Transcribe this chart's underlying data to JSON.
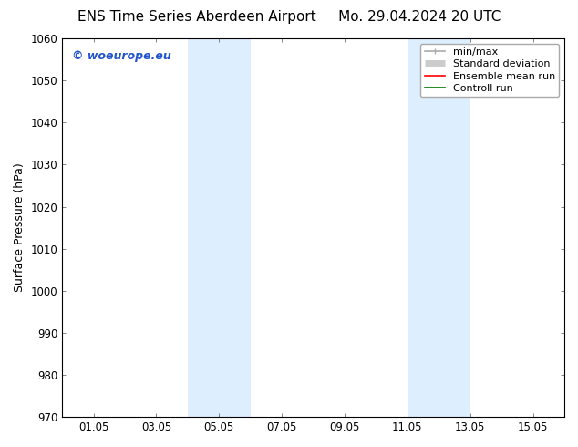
{
  "title_left": "ENS Time Series Aberdeen Airport",
  "title_right": "Mo. 29.04.2024 20 UTC",
  "ylabel": "Surface Pressure (hPa)",
  "ylim": [
    970,
    1060
  ],
  "yticks": [
    970,
    980,
    990,
    1000,
    1010,
    1020,
    1030,
    1040,
    1050,
    1060
  ],
  "xtick_labels": [
    "01.05",
    "03.05",
    "05.05",
    "07.05",
    "09.05",
    "11.05",
    "13.05",
    "15.05"
  ],
  "xtick_positions": [
    1,
    3,
    5,
    7,
    9,
    11,
    13,
    15
  ],
  "xmin": 0,
  "xmax": 16,
  "shaded_bands": [
    {
      "xmin": 4.0,
      "xmax": 6.0,
      "color": "#ddeeff"
    },
    {
      "xmin": 11.0,
      "xmax": 13.0,
      "color": "#ddeeff"
    }
  ],
  "watermark_text": "© woeurope.eu",
  "watermark_color": "#2255cc",
  "legend_entries": [
    {
      "label": "min/max",
      "color": "#aaaaaa",
      "lw": 1.2
    },
    {
      "label": "Standard deviation",
      "color": "#cccccc",
      "lw": 5
    },
    {
      "label": "Ensemble mean run",
      "color": "#ff0000",
      "lw": 1.2
    },
    {
      "label": "Controll run",
      "color": "#007700",
      "lw": 1.2
    }
  ],
  "bg_color": "#ffffff",
  "grid_color": "#cccccc",
  "title_fontsize": 11,
  "axis_fontsize": 9,
  "tick_fontsize": 8.5,
  "legend_fontsize": 8
}
